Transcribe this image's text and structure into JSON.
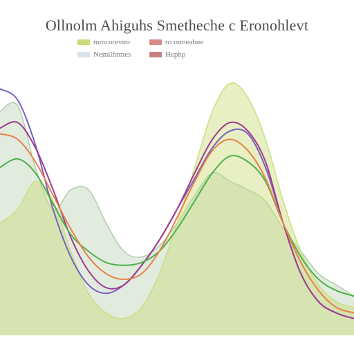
{
  "chart_data": {
    "type": "line",
    "title": "Ollnolm Ahiguhs Smetheche c Eronohlevt",
    "legend_position": "top-center",
    "legend": [
      {
        "label": "mmcorevmr",
        "color": "#c9dc7a"
      },
      {
        "label": "ro rnmeabne",
        "color": "#d98a8a"
      },
      {
        "label": "Nemilhrmes",
        "color": "#d7e2ea"
      },
      {
        "label": "Hephp",
        "color": "#c77f7f"
      }
    ],
    "x_range": [
      0,
      100
    ],
    "y_range": [
      0,
      100
    ],
    "grid": false,
    "x": [
      0,
      5,
      10,
      15,
      20,
      25,
      30,
      35,
      40,
      45,
      50,
      55,
      60,
      65,
      70,
      75,
      80,
      85,
      90,
      95,
      100
    ],
    "series": [
      {
        "color": "#7a5fc0",
        "style": "line",
        "values": [
          88,
          84,
          68,
          45,
          28,
          18,
          15,
          18,
          25,
          34,
          45,
          56,
          67,
          73,
          72,
          60,
          40,
          22,
          12,
          8,
          6
        ]
      },
      {
        "color": "#a03a8f",
        "style": "line",
        "values": [
          74,
          76,
          67,
          52,
          35,
          23,
          17,
          18,
          25,
          34,
          45,
          58,
          70,
          76,
          73,
          62,
          40,
          22,
          12,
          8,
          6
        ]
      },
      {
        "color": "#4cb04a",
        "style": "line",
        "values": [
          60,
          63,
          58,
          47,
          36,
          30,
          26,
          25,
          26,
          30,
          38,
          48,
          58,
          64,
          62,
          55,
          40,
          28,
          20,
          16,
          14
        ]
      },
      {
        "color": "#a9c9a3",
        "style": "area",
        "values": [
          80,
          82,
          60,
          45,
          52,
          52,
          40,
          30,
          28,
          32,
          40,
          50,
          58,
          55,
          52,
          48,
          38,
          30,
          22,
          18,
          14
        ]
      },
      {
        "color": "#c9dc7a",
        "style": "area",
        "values": [
          40,
          45,
          55,
          48,
          30,
          15,
          8,
          6,
          10,
          22,
          40,
          60,
          80,
          90,
          85,
          70,
          48,
          30,
          18,
          12,
          10
        ]
      },
      {
        "color": "#e98045",
        "style": "line",
        "values": [
          72,
          70,
          62,
          50,
          38,
          28,
          22,
          20,
          22,
          30,
          42,
          55,
          66,
          70,
          66,
          56,
          40,
          26,
          16,
          10,
          8
        ]
      }
    ]
  }
}
